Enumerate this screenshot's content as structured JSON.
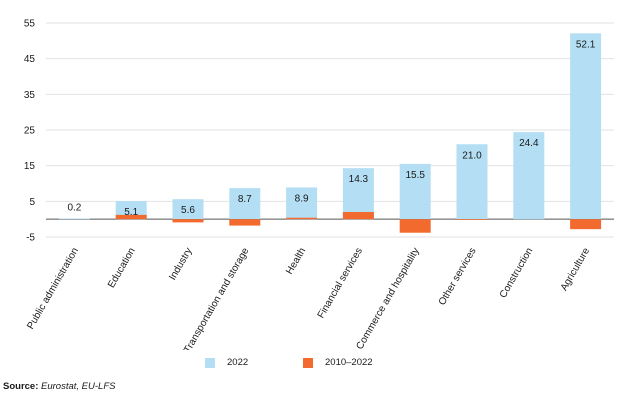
{
  "chart_data": {
    "type": "bar",
    "title": "",
    "xlabel": "",
    "ylabel": "",
    "categories": [
      "Public administration",
      "Education",
      "Industry",
      "Transportation and storage",
      "Health",
      "Financial services",
      "Commerce and hospitality",
      "Other services",
      "Construction",
      "Agriculture"
    ],
    "series": [
      {
        "name": "2022",
        "color": "#b3def3",
        "values": [
          0.2,
          5.1,
          5.6,
          8.7,
          8.9,
          14.3,
          15.5,
          21.0,
          24.4,
          52.1
        ],
        "labels": [
          "0.2",
          "5.1",
          "5.6",
          "8.7",
          "8.9",
          "14.3",
          "15.5",
          "21.0",
          "24.4",
          "52.1"
        ]
      },
      {
        "name": "2010–2022",
        "color": "#f26a2e",
        "values": [
          0.0,
          1.2,
          -0.9,
          -1.8,
          0.4,
          2.0,
          -3.8,
          -0.2,
          0.0,
          -2.8
        ]
      }
    ],
    "ylim": [
      -5,
      55
    ],
    "yticks": [
      -5,
      5,
      15,
      25,
      35,
      45,
      55
    ],
    "grid": true,
    "legend": "bottom"
  },
  "source": {
    "label": "Source:",
    "text": "Eurostat, EU-LFS"
  }
}
